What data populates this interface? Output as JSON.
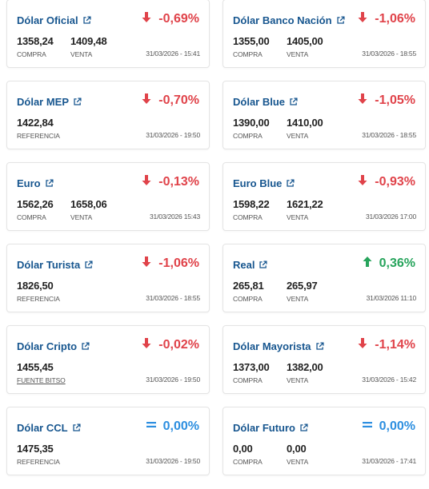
{
  "colors": {
    "title": "#17568f",
    "down": "#e0434a",
    "up": "#27a45c",
    "flat": "#2d8fe0"
  },
  "cards": [
    {
      "title": "Dólar Oficial",
      "direction": "down",
      "icon": "arrow-down-icon",
      "change": "-0,69%",
      "values": [
        {
          "value": "1358,24",
          "label": "COMPRA"
        },
        {
          "value": "1409,48",
          "label": "VENTA"
        }
      ],
      "date": "31/03/2026 - 15:41"
    },
    {
      "title": "Dólar Banco Nación",
      "direction": "down",
      "icon": "arrow-down-icon",
      "change": "-1,06%",
      "values": [
        {
          "value": "1355,00",
          "label": "COMPRA"
        },
        {
          "value": "1405,00",
          "label": "VENTA"
        }
      ],
      "date": "31/03/2026 - 18:55"
    },
    {
      "title": "Dólar MEP",
      "direction": "down",
      "icon": "arrow-down-icon",
      "change": "-0,70%",
      "values": [
        {
          "value": "1422,84",
          "label": "REFERENCIA"
        }
      ],
      "date": "31/03/2026 - 19:50"
    },
    {
      "title": "Dólar Blue",
      "direction": "down",
      "icon": "arrow-down-icon",
      "change": "-1,05%",
      "values": [
        {
          "value": "1390,00",
          "label": "COMPRA"
        },
        {
          "value": "1410,00",
          "label": "VENTA"
        }
      ],
      "date": "31/03/2026 - 18:55"
    },
    {
      "title": "Euro",
      "direction": "down",
      "icon": "arrow-down-icon",
      "change": "-0,13%",
      "values": [
        {
          "value": "1562,26",
          "label": "COMPRA"
        },
        {
          "value": "1658,06",
          "label": "VENTA"
        }
      ],
      "date": "31/03/2026 15:43"
    },
    {
      "title": "Euro Blue",
      "direction": "down",
      "icon": "arrow-down-icon",
      "change": "-0,93%",
      "values": [
        {
          "value": "1598,22",
          "label": "COMPRA"
        },
        {
          "value": "1621,22",
          "label": "VENTA"
        }
      ],
      "date": "31/03/2026 17:00"
    },
    {
      "title": "Dólar Turista",
      "direction": "down",
      "icon": "arrow-down-icon",
      "change": "-1,06%",
      "values": [
        {
          "value": "1826,50",
          "label": "REFERENCIA"
        }
      ],
      "date": "31/03/2026 - 18:55"
    },
    {
      "title": "Real",
      "direction": "up",
      "icon": "arrow-up-icon",
      "change": "0,36%",
      "values": [
        {
          "value": "265,81",
          "label": "COMPRA"
        },
        {
          "value": "265,97",
          "label": "VENTA"
        }
      ],
      "date": "31/03/2026 11:10"
    },
    {
      "title": "Dólar Cripto",
      "direction": "down",
      "icon": "arrow-down-icon",
      "change": "-0,02%",
      "values": [
        {
          "value": "1455,45",
          "label": "FUENTE BITSO",
          "link": true
        }
      ],
      "date": "31/03/2026 - 19:50"
    },
    {
      "title": "Dólar Mayorista",
      "direction": "down",
      "icon": "arrow-down-icon",
      "change": "-1,14%",
      "values": [
        {
          "value": "1373,00",
          "label": "COMPRA"
        },
        {
          "value": "1382,00",
          "label": "VENTA"
        }
      ],
      "date": "31/03/2026 - 15:42"
    },
    {
      "title": "Dólar CCL",
      "direction": "flat",
      "icon": "equals-icon",
      "change": "0,00%",
      "values": [
        {
          "value": "1475,35",
          "label": "REFERENCIA"
        }
      ],
      "date": "31/03/2026 - 19:50"
    },
    {
      "title": "Dólar Futuro",
      "direction": "flat",
      "icon": "equals-icon",
      "change": "0,00%",
      "values": [
        {
          "value": "0,00",
          "label": "COMPRA"
        },
        {
          "value": "0,00",
          "label": "VENTA"
        }
      ],
      "date": "31/03/2026 - 17:41"
    }
  ]
}
